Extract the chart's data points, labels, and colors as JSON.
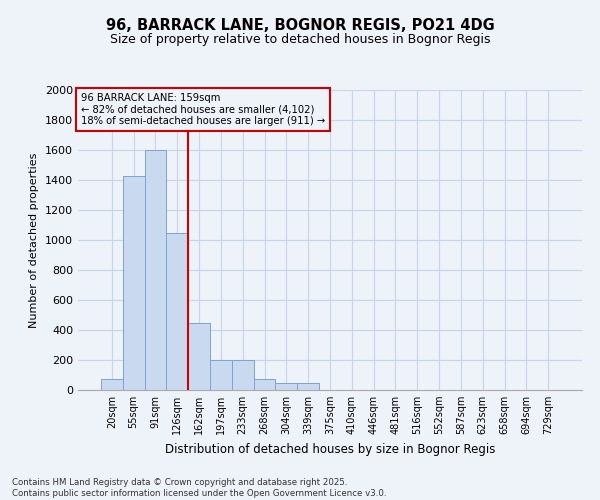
{
  "title_line1": "96, BARRACK LANE, BOGNOR REGIS, PO21 4DG",
  "title_line2": "Size of property relative to detached houses in Bognor Regis",
  "xlabel": "Distribution of detached houses by size in Bognor Regis",
  "ylabel": "Number of detached properties",
  "categories": [
    "20sqm",
    "55sqm",
    "91sqm",
    "126sqm",
    "162sqm",
    "197sqm",
    "233sqm",
    "268sqm",
    "304sqm",
    "339sqm",
    "375sqm",
    "410sqm",
    "446sqm",
    "481sqm",
    "516sqm",
    "552sqm",
    "587sqm",
    "623sqm",
    "658sqm",
    "694sqm",
    "729sqm"
  ],
  "values": [
    75,
    1425,
    1600,
    1050,
    450,
    200,
    200,
    75,
    50,
    50,
    0,
    0,
    0,
    0,
    0,
    0,
    0,
    0,
    0,
    0,
    0
  ],
  "bar_color": "#c9d9f0",
  "bar_edge_color": "#7ba4d4",
  "vline_x_index": 3.5,
  "vline_color": "#cc0000",
  "ylim": [
    0,
    2000
  ],
  "yticks": [
    0,
    200,
    400,
    600,
    800,
    1000,
    1200,
    1400,
    1600,
    1800,
    2000
  ],
  "annotation_text": "96 BARRACK LANE: 159sqm\n← 82% of detached houses are smaller (4,102)\n18% of semi-detached houses are larger (911) →",
  "annotation_box_color": "#cc0000",
  "footer_line1": "Contains HM Land Registry data © Crown copyright and database right 2025.",
  "footer_line2": "Contains public sector information licensed under the Open Government Licence v3.0.",
  "bg_color": "#eef2f9",
  "grid_color": "#c8d4e8"
}
